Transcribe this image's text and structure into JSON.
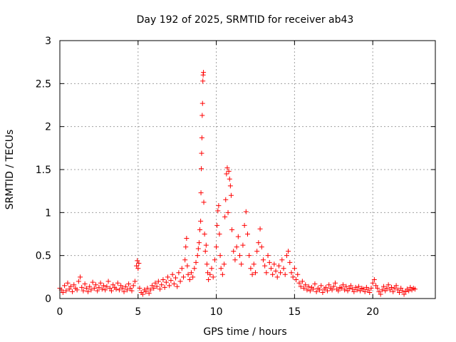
{
  "chart_data": {
    "type": "scatter",
    "title": "Day 192 of 2025, SRMTID for receiver ab43",
    "xlabel": "GPS time / hours",
    "ylabel": "SRMTID / TECUs",
    "xlim": [
      0,
      24
    ],
    "ylim": [
      0,
      3
    ],
    "xticks": [
      {
        "value": 0,
        "label": "0"
      },
      {
        "value": 5,
        "label": "5"
      },
      {
        "value": 10,
        "label": "10"
      },
      {
        "value": 15,
        "label": "15"
      },
      {
        "value": 20,
        "label": "20"
      }
    ],
    "yticks": [
      {
        "value": 0,
        "label": "0"
      },
      {
        "value": 0.5,
        "label": "0.5"
      },
      {
        "value": 1,
        "label": "1"
      },
      {
        "value": 1.5,
        "label": "1.5"
      },
      {
        "value": 2,
        "label": "2"
      },
      {
        "value": 2.5,
        "label": "2.5"
      },
      {
        "value": 3,
        "label": "3"
      }
    ],
    "grid": true,
    "marker": "plus",
    "marker_color": "#ff0000",
    "series": [
      {
        "name": "SRMTID",
        "points": [
          [
            0.0,
            0.12
          ],
          [
            0.1,
            0.1
          ],
          [
            0.2,
            0.07
          ],
          [
            0.3,
            0.15
          ],
          [
            0.4,
            0.09
          ],
          [
            0.5,
            0.18
          ],
          [
            0.6,
            0.11
          ],
          [
            0.7,
            0.14
          ],
          [
            0.8,
            0.08
          ],
          [
            0.9,
            0.16
          ],
          [
            1.0,
            0.12
          ],
          [
            1.1,
            0.1
          ],
          [
            1.2,
            0.2
          ],
          [
            1.3,
            0.25
          ],
          [
            1.4,
            0.13
          ],
          [
            1.5,
            0.09
          ],
          [
            1.6,
            0.17
          ],
          [
            1.7,
            0.12
          ],
          [
            1.8,
            0.08
          ],
          [
            1.9,
            0.14
          ],
          [
            2.0,
            0.1
          ],
          [
            2.1,
            0.19
          ],
          [
            2.2,
            0.12
          ],
          [
            2.3,
            0.16
          ],
          [
            2.4,
            0.09
          ],
          [
            2.5,
            0.13
          ],
          [
            2.6,
            0.18
          ],
          [
            2.7,
            0.11
          ],
          [
            2.8,
            0.15
          ],
          [
            2.9,
            0.1
          ],
          [
            3.0,
            0.14
          ],
          [
            3.1,
            0.2
          ],
          [
            3.2,
            0.12
          ],
          [
            3.3,
            0.09
          ],
          [
            3.4,
            0.16
          ],
          [
            3.5,
            0.13
          ],
          [
            3.6,
            0.11
          ],
          [
            3.7,
            0.18
          ],
          [
            3.8,
            0.1
          ],
          [
            3.9,
            0.15
          ],
          [
            4.0,
            0.12
          ],
          [
            4.1,
            0.08
          ],
          [
            4.2,
            0.14
          ],
          [
            4.3,
            0.1
          ],
          [
            4.4,
            0.17
          ],
          [
            4.5,
            0.12
          ],
          [
            4.6,
            0.09
          ],
          [
            4.7,
            0.15
          ],
          [
            4.8,
            0.2
          ],
          [
            4.9,
            0.38
          ],
          [
            4.95,
            0.44
          ],
          [
            5.0,
            0.35
          ],
          [
            5.05,
            0.41
          ],
          [
            5.1,
            0.12
          ],
          [
            5.2,
            0.07
          ],
          [
            5.3,
            0.05
          ],
          [
            5.4,
            0.1
          ],
          [
            5.5,
            0.08
          ],
          [
            5.6,
            0.12
          ],
          [
            5.7,
            0.06
          ],
          [
            5.8,
            0.1
          ],
          [
            5.9,
            0.15
          ],
          [
            6.0,
            0.12
          ],
          [
            6.1,
            0.18
          ],
          [
            6.2,
            0.14
          ],
          [
            6.3,
            0.2
          ],
          [
            6.4,
            0.11
          ],
          [
            6.5,
            0.16
          ],
          [
            6.6,
            0.22
          ],
          [
            6.7,
            0.13
          ],
          [
            6.8,
            0.19
          ],
          [
            6.9,
            0.25
          ],
          [
            7.0,
            0.15
          ],
          [
            7.1,
            0.21
          ],
          [
            7.2,
            0.28
          ],
          [
            7.3,
            0.17
          ],
          [
            7.4,
            0.24
          ],
          [
            7.5,
            0.14
          ],
          [
            7.6,
            0.3
          ],
          [
            7.7,
            0.2
          ],
          [
            7.8,
            0.35
          ],
          [
            7.9,
            0.25
          ],
          [
            8.0,
            0.45
          ],
          [
            8.05,
            0.6
          ],
          [
            8.1,
            0.7
          ],
          [
            8.15,
            0.38
          ],
          [
            8.2,
            0.28
          ],
          [
            8.3,
            0.22
          ],
          [
            8.4,
            0.3
          ],
          [
            8.5,
            0.25
          ],
          [
            8.6,
            0.35
          ],
          [
            8.7,
            0.42
          ],
          [
            8.8,
            0.5
          ],
          [
            8.85,
            0.58
          ],
          [
            8.9,
            0.65
          ],
          [
            8.95,
            0.8
          ],
          [
            9.0,
            0.9
          ],
          [
            9.02,
            1.23
          ],
          [
            9.04,
            1.51
          ],
          [
            9.06,
            1.69
          ],
          [
            9.08,
            1.87
          ],
          [
            9.1,
            2.13
          ],
          [
            9.12,
            2.27
          ],
          [
            9.14,
            2.53
          ],
          [
            9.16,
            2.6
          ],
          [
            9.18,
            2.63
          ],
          [
            9.2,
            1.12
          ],
          [
            9.25,
            0.75
          ],
          [
            9.3,
            0.55
          ],
          [
            9.35,
            0.62
          ],
          [
            9.4,
            0.4
          ],
          [
            9.45,
            0.3
          ],
          [
            9.5,
            0.22
          ],
          [
            9.6,
            0.28
          ],
          [
            9.7,
            0.35
          ],
          [
            9.8,
            0.25
          ],
          [
            9.9,
            0.45
          ],
          [
            10.0,
            0.6
          ],
          [
            10.05,
            0.85
          ],
          [
            10.1,
            1.02
          ],
          [
            10.15,
            1.08
          ],
          [
            10.2,
            0.75
          ],
          [
            10.25,
            0.5
          ],
          [
            10.3,
            0.35
          ],
          [
            10.4,
            0.28
          ],
          [
            10.5,
            0.4
          ],
          [
            10.55,
            0.95
          ],
          [
            10.6,
            1.15
          ],
          [
            10.65,
            1.45
          ],
          [
            10.7,
            1.52
          ],
          [
            10.75,
            1.0
          ],
          [
            10.8,
            1.48
          ],
          [
            10.85,
            1.39
          ],
          [
            10.9,
            1.31
          ],
          [
            10.95,
            1.2
          ],
          [
            11.0,
            0.8
          ],
          [
            11.1,
            0.55
          ],
          [
            11.2,
            0.45
          ],
          [
            11.3,
            0.6
          ],
          [
            11.4,
            0.72
          ],
          [
            11.5,
            0.5
          ],
          [
            11.6,
            0.4
          ],
          [
            11.7,
            0.62
          ],
          [
            11.8,
            0.85
          ],
          [
            11.9,
            1.01
          ],
          [
            12.0,
            0.75
          ],
          [
            12.1,
            0.5
          ],
          [
            12.2,
            0.35
          ],
          [
            12.3,
            0.28
          ],
          [
            12.4,
            0.4
          ],
          [
            12.5,
            0.3
          ],
          [
            12.6,
            0.55
          ],
          [
            12.7,
            0.65
          ],
          [
            12.8,
            0.81
          ],
          [
            12.9,
            0.6
          ],
          [
            13.0,
            0.45
          ],
          [
            13.1,
            0.38
          ],
          [
            13.2,
            0.3
          ],
          [
            13.3,
            0.5
          ],
          [
            13.4,
            0.42
          ],
          [
            13.5,
            0.35
          ],
          [
            13.6,
            0.28
          ],
          [
            13.7,
            0.4
          ],
          [
            13.8,
            0.32
          ],
          [
            13.9,
            0.25
          ],
          [
            14.0,
            0.38
          ],
          [
            14.1,
            0.3
          ],
          [
            14.2,
            0.45
          ],
          [
            14.3,
            0.35
          ],
          [
            14.4,
            0.28
          ],
          [
            14.5,
            0.5
          ],
          [
            14.6,
            0.55
          ],
          [
            14.7,
            0.42
          ],
          [
            14.8,
            0.3
          ],
          [
            14.9,
            0.25
          ],
          [
            15.0,
            0.35
          ],
          [
            15.1,
            0.22
          ],
          [
            15.2,
            0.28
          ],
          [
            15.3,
            0.18
          ],
          [
            15.4,
            0.14
          ],
          [
            15.5,
            0.2
          ],
          [
            15.6,
            0.12
          ],
          [
            15.7,
            0.16
          ],
          [
            15.8,
            0.1
          ],
          [
            15.9,
            0.14
          ],
          [
            16.0,
            0.09
          ],
          [
            16.1,
            0.13
          ],
          [
            16.2,
            0.11
          ],
          [
            16.3,
            0.17
          ],
          [
            16.4,
            0.08
          ],
          [
            16.5,
            0.12
          ],
          [
            16.6,
            0.1
          ],
          [
            16.7,
            0.15
          ],
          [
            16.8,
            0.07
          ],
          [
            16.9,
            0.11
          ],
          [
            17.0,
            0.13
          ],
          [
            17.1,
            0.09
          ],
          [
            17.2,
            0.16
          ],
          [
            17.3,
            0.12
          ],
          [
            17.4,
            0.1
          ],
          [
            17.5,
            0.14
          ],
          [
            17.6,
            0.18
          ],
          [
            17.7,
            0.11
          ],
          [
            17.8,
            0.09
          ],
          [
            17.9,
            0.13
          ],
          [
            18.0,
            0.12
          ],
          [
            18.1,
            0.16
          ],
          [
            18.2,
            0.1
          ],
          [
            18.3,
            0.14
          ],
          [
            18.4,
            0.09
          ],
          [
            18.5,
            0.12
          ],
          [
            18.6,
            0.15
          ],
          [
            18.7,
            0.11
          ],
          [
            18.8,
            0.08
          ],
          [
            18.9,
            0.13
          ],
          [
            19.0,
            0.1
          ],
          [
            19.1,
            0.14
          ],
          [
            19.2,
            0.09
          ],
          [
            19.3,
            0.12
          ],
          [
            19.4,
            0.11
          ],
          [
            19.5,
            0.08
          ],
          [
            19.6,
            0.13
          ],
          [
            19.7,
            0.1
          ],
          [
            19.8,
            0.07
          ],
          [
            19.9,
            0.12
          ],
          [
            20.0,
            0.18
          ],
          [
            20.1,
            0.22
          ],
          [
            20.2,
            0.15
          ],
          [
            20.3,
            0.12
          ],
          [
            20.4,
            0.08
          ],
          [
            20.5,
            0.05
          ],
          [
            20.6,
            0.1
          ],
          [
            20.7,
            0.14
          ],
          [
            20.8,
            0.09
          ],
          [
            20.9,
            0.12
          ],
          [
            21.0,
            0.16
          ],
          [
            21.1,
            0.1
          ],
          [
            21.2,
            0.13
          ],
          [
            21.3,
            0.08
          ],
          [
            21.4,
            0.12
          ],
          [
            21.5,
            0.15
          ],
          [
            21.6,
            0.1
          ],
          [
            21.7,
            0.07
          ],
          [
            21.8,
            0.12
          ],
          [
            21.9,
            0.09
          ],
          [
            22.0,
            0.05
          ],
          [
            22.1,
            0.08
          ],
          [
            22.2,
            0.11
          ],
          [
            22.3,
            0.09
          ],
          [
            22.4,
            0.13
          ],
          [
            22.5,
            0.1
          ],
          [
            22.6,
            0.12
          ],
          [
            22.7,
            0.11
          ]
        ]
      }
    ]
  }
}
